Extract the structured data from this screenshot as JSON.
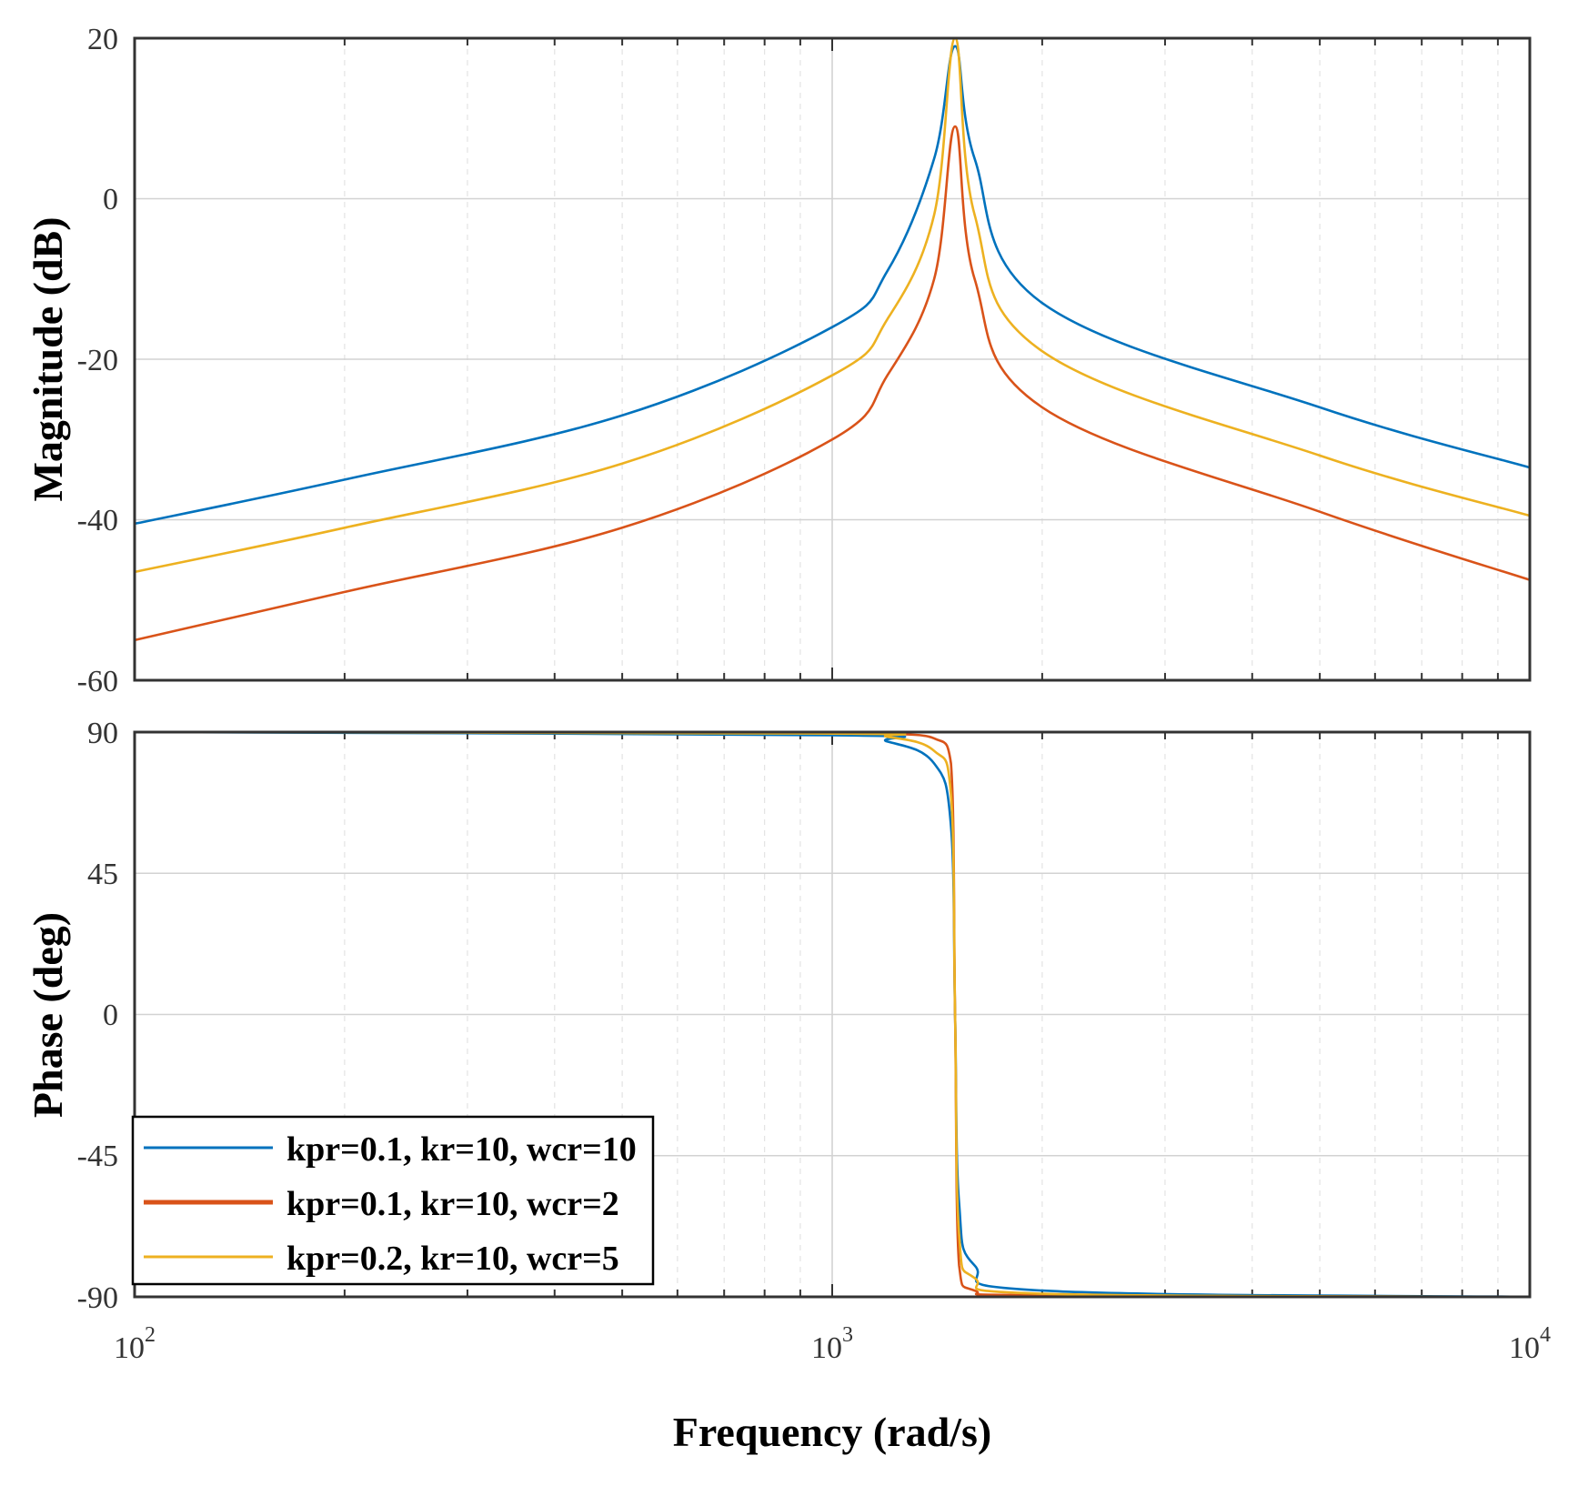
{
  "chart_data": [
    {
      "type": "line",
      "panel": "magnitude",
      "xscale": "log",
      "xlim": [
        100,
        10000
      ],
      "ylim": [
        -60,
        20
      ],
      "yticks": [
        20,
        0,
        -20,
        -40,
        -60
      ],
      "grid": true,
      "xlabel": "Frequency (rad/s)",
      "ylabel": "Magnitude (dB)",
      "x": [
        100,
        200,
        500,
        1000,
        1200,
        1400,
        1500,
        1600,
        2000,
        5000,
        10000
      ],
      "series": [
        {
          "name": "kpr=0.1, kr=10, wcr=10",
          "color": "#0072BD",
          "values": [
            -40.5,
            -35,
            -27,
            -16,
            -9,
            5,
            19,
            5,
            -13,
            -26,
            -33.5
          ]
        },
        {
          "name": "kpr=0.1, kr=10, wcr=2",
          "color": "#D95319",
          "values": [
            -55,
            -49,
            -41,
            -30,
            -22,
            -10,
            9,
            -10,
            -26,
            -39,
            -47.5
          ]
        },
        {
          "name": "kpr=0.2, kr=10, wcr=5",
          "color": "#EDB120",
          "values": [
            -46.5,
            -41,
            -33,
            -22,
            -15,
            -2,
            20,
            -2,
            -19,
            -32,
            -39.5
          ]
        }
      ]
    },
    {
      "type": "line",
      "panel": "phase",
      "xscale": "log",
      "xlim": [
        100,
        10000
      ],
      "ylim": [
        -90,
        90
      ],
      "yticks": [
        90,
        45,
        0,
        -45,
        -90
      ],
      "xticks": [
        "10^2",
        "10^3",
        "10^4"
      ],
      "grid": true,
      "xlabel": "Frequency (rad/s)",
      "ylabel": "Phase (deg)",
      "x": [
        100,
        1000,
        1200,
        1400,
        1480,
        1500,
        1520,
        1600,
        2000,
        10000
      ],
      "series": [
        {
          "name": "kpr=0.1, kr=10, wcr=10",
          "color": "#0072BD",
          "values": [
            90,
            89,
            87,
            80,
            60,
            0,
            -60,
            -80,
            -88,
            -90
          ]
        },
        {
          "name": "kpr=0.1, kr=10, wcr=2",
          "color": "#D95319",
          "values": [
            90,
            90,
            89.5,
            88,
            80,
            0,
            -80,
            -88,
            -89.5,
            -90
          ]
        },
        {
          "name": "kpr=0.2, kr=10, wcr=5",
          "color": "#EDB120",
          "values": [
            90,
            89.5,
            88.5,
            84,
            70,
            0,
            -70,
            -84,
            -89,
            -90
          ]
        }
      ]
    }
  ],
  "legend": {
    "placement": "bottom-left",
    "entries": [
      {
        "label": "kpr=0.1, kr=10, wcr=10",
        "color": "#0072BD"
      },
      {
        "label": "kpr=0.1, kr=10, wcr=2",
        "color": "#D95319"
      },
      {
        "label": "kpr=0.2, kr=10, wcr=5",
        "color": "#EDB120"
      }
    ]
  },
  "xlabel": "Frequency (rad/s)",
  "xtick_labels": [
    {
      "base": "10",
      "exp": "2"
    },
    {
      "base": "10",
      "exp": "3"
    },
    {
      "base": "10",
      "exp": "4"
    }
  ],
  "mag_tick_labels": [
    "20",
    "0",
    "-20",
    "-40",
    "-60"
  ],
  "phase_tick_labels": [
    "90",
    "45",
    "0",
    "-45",
    "-90"
  ],
  "mag_ylabel": "Magnitude (dB)",
  "phase_ylabel": "Phase (deg)"
}
